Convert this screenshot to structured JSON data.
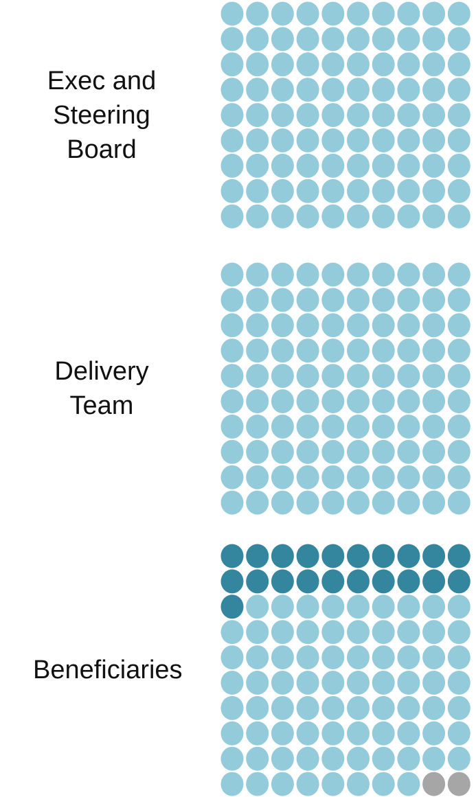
{
  "chart_data": {
    "type": "waffle",
    "categories": [
      "Exec and Steering Board",
      "Delivery Team",
      "Beneficiaries"
    ],
    "series": [
      {
        "color": "#33869e",
        "values": [
          0,
          0,
          21
        ]
      },
      {
        "color": "#94cbdb",
        "values": [
          90,
          100,
          77
        ]
      },
      {
        "color": "#a6a6a6",
        "values": [
          0,
          0,
          2
        ]
      }
    ]
  }
}
